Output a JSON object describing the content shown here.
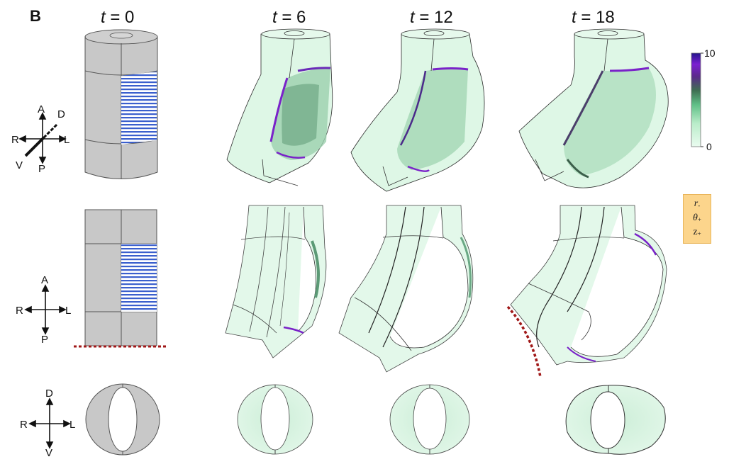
{
  "panel_label": "B",
  "time_labels": [
    {
      "var": "t",
      "value": "0"
    },
    {
      "var": "t",
      "value": "6"
    },
    {
      "var": "t",
      "value": "12"
    },
    {
      "var": "t",
      "value": "18"
    }
  ],
  "axes_3d": {
    "up": "A",
    "down": "P",
    "left": "R",
    "right": "L",
    "back": "D",
    "front": "V"
  },
  "axes_front": {
    "up": "A",
    "down": "P",
    "left": "R",
    "right": "L"
  },
  "axes_top": {
    "up": "D",
    "down": "V",
    "left": "R",
    "right": "L"
  },
  "colorbar": {
    "max": "10",
    "min": "0",
    "colors": [
      "#e9fbef",
      "#b8ecc8",
      "#5fbf86",
      "#3f6f52",
      "#5a2a8a",
      "#7b1fd1",
      "#2a1a8c"
    ]
  },
  "mode_box": {
    "r": "r",
    "r_sub": "-",
    "theta": "θ",
    "theta_sub": "+",
    "z": "z",
    "z_sub": "+"
  },
  "colors": {
    "tissue_gray": "#c8c8c8",
    "stripe_blue": "#3a5fcd",
    "strain_light": "#dff7e6",
    "strain_dark": "#2f5c44",
    "strain_peak": "#7a22c9",
    "boundary_dotted": "#a01818"
  }
}
